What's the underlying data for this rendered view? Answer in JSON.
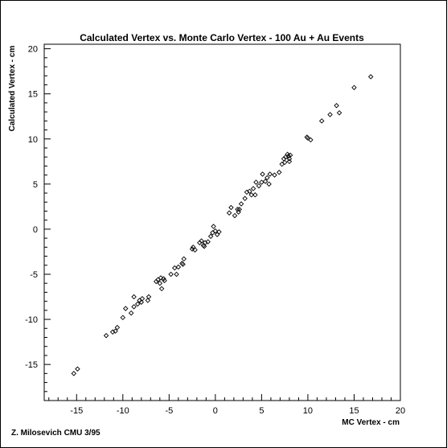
{
  "chart_data": {
    "type": "scatter",
    "title": "Calculated Vertex vs. Monte Carlo Vertex - 100 Au + Au Events",
    "xlabel": "MC Vertex - cm",
    "ylabel": "Calculated Vertex - cm",
    "xlim": [
      -18.5,
      20
    ],
    "ylim": [
      -19,
      20.5
    ],
    "xticks": [
      "-15",
      "-10",
      "-5",
      "0",
      "5",
      "10",
      "15",
      "20"
    ],
    "yticks": [
      "-15",
      "-10",
      "-5",
      "0",
      "5",
      "10",
      "15",
      "20"
    ],
    "marker": "open-diamond",
    "grid": false,
    "points": [
      [
        -15.3,
        -16.0
      ],
      [
        -14.9,
        -15.5
      ],
      [
        -11.8,
        -11.8
      ],
      [
        -11.1,
        -11.4
      ],
      [
        -10.8,
        -11.3
      ],
      [
        -10.6,
        -10.9
      ],
      [
        -10.0,
        -9.8
      ],
      [
        -9.7,
        -8.8
      ],
      [
        -9.1,
        -9.3
      ],
      [
        -8.8,
        -8.6
      ],
      [
        -8.8,
        -7.5
      ],
      [
        -8.4,
        -8.3
      ],
      [
        -8.2,
        -7.9
      ],
      [
        -8.0,
        -8.1
      ],
      [
        -7.9,
        -7.7
      ],
      [
        -7.3,
        -7.9
      ],
      [
        -7.2,
        -7.5
      ],
      [
        -6.4,
        -5.8
      ],
      [
        -6.2,
        -5.6
      ],
      [
        -6.0,
        -6.0
      ],
      [
        -5.9,
        -5.4
      ],
      [
        -5.8,
        -6.6
      ],
      [
        -5.6,
        -5.5
      ],
      [
        -5.5,
        -5.7
      ],
      [
        -4.8,
        -5.0
      ],
      [
        -4.4,
        -4.3
      ],
      [
        -4.2,
        -5.0
      ],
      [
        -4.0,
        -4.2
      ],
      [
        -3.6,
        -3.8
      ],
      [
        -3.4,
        -3.3
      ],
      [
        -3.5,
        -3.9
      ],
      [
        -2.5,
        -2.2
      ],
      [
        -2.4,
        -2.0
      ],
      [
        -2.2,
        -2.3
      ],
      [
        -1.7,
        -1.5
      ],
      [
        -1.5,
        -1.3
      ],
      [
        -1.3,
        -1.8
      ],
      [
        -1.2,
        -1.9
      ],
      [
        -1.1,
        -1.5
      ],
      [
        -0.8,
        -1.4
      ],
      [
        -0.5,
        -0.8
      ],
      [
        -0.3,
        -0.4
      ],
      [
        -0.2,
        0.3
      ],
      [
        0.0,
        -0.2
      ],
      [
        0.2,
        -0.6
      ],
      [
        0.4,
        -0.3
      ],
      [
        1.5,
        1.8
      ],
      [
        1.7,
        2.4
      ],
      [
        2.1,
        1.5
      ],
      [
        2.4,
        2.2
      ],
      [
        2.5,
        1.9
      ],
      [
        2.6,
        2.2
      ],
      [
        2.8,
        2.8
      ],
      [
        3.2,
        3.4
      ],
      [
        3.4,
        4.1
      ],
      [
        3.7,
        4.2
      ],
      [
        3.9,
        3.8
      ],
      [
        4.1,
        4.5
      ],
      [
        4.3,
        3.8
      ],
      [
        4.4,
        5.2
      ],
      [
        4.7,
        4.8
      ],
      [
        5.0,
        5.2
      ],
      [
        5.1,
        6.1
      ],
      [
        5.4,
        5.3
      ],
      [
        5.6,
        5.7
      ],
      [
        5.8,
        5.0
      ],
      [
        5.9,
        6.1
      ],
      [
        6.4,
        6.0
      ],
      [
        6.9,
        6.3
      ],
      [
        7.2,
        7.2
      ],
      [
        7.4,
        7.8
      ],
      [
        7.5,
        7.4
      ],
      [
        7.6,
        8.0
      ],
      [
        7.8,
        8.3
      ],
      [
        7.9,
        8.1
      ],
      [
        8.0,
        7.5
      ],
      [
        8.0,
        7.8
      ],
      [
        8.1,
        8.2
      ],
      [
        9.9,
        10.2
      ],
      [
        10.0,
        10.1
      ],
      [
        10.3,
        9.9
      ],
      [
        11.5,
        12.0
      ],
      [
        12.4,
        12.7
      ],
      [
        13.1,
        13.7
      ],
      [
        13.4,
        12.9
      ],
      [
        15.0,
        15.7
      ],
      [
        16.8,
        16.9
      ]
    ]
  },
  "footer": {
    "credit": "Z. Milosevich CMU 3/95"
  }
}
